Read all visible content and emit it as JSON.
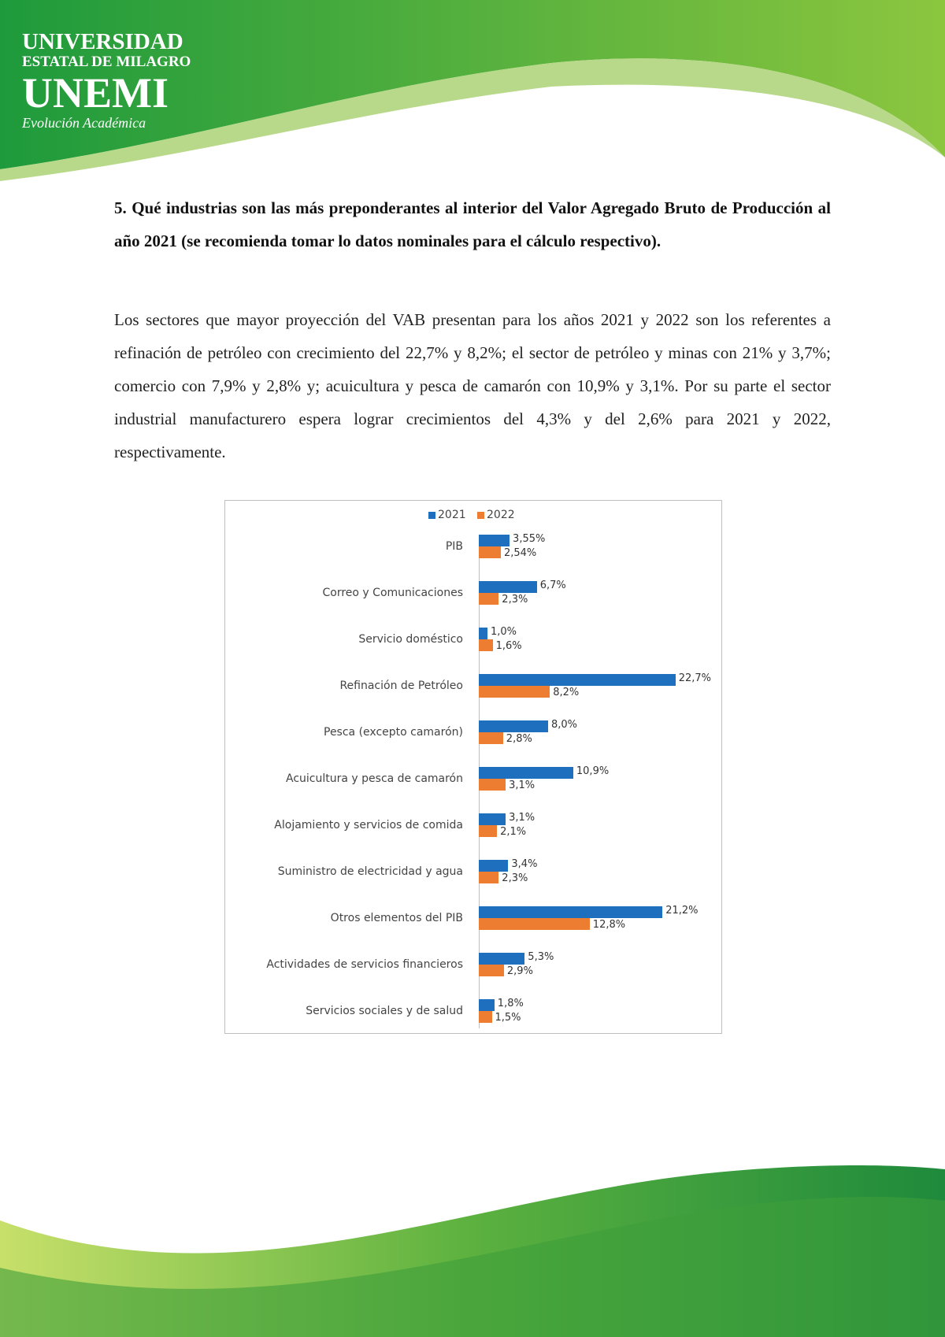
{
  "header": {
    "logo_line1": "UNIVERSIDAD",
    "logo_line2": "ESTATAL DE MILAGRO",
    "logo_line3": "UNEMI",
    "logo_tagline": "Evolución Académica"
  },
  "question": "5. Qué industrias son las más preponderantes al interior del Valor Agregado Bruto de Producción al año 2021 (se recomienda tomar lo datos nominales para el cálculo respectivo).",
  "paragraph": "Los sectores que mayor proyección del VAB presentan para los años 2021 y 2022 son los referentes a refinación de petróleo con crecimiento del 22,7% y 8,2%; el sector de petróleo y minas con 21% y 3,7%; comercio con 7,9% y 2,8% y; acuicultura y pesca de camarón con 10,9% y 3,1%. Por su parte el sector industrial manufacturero espera lograr crecimientos del 4,3% y del 2,6% para 2021 y 2022, respectivamente.",
  "chart_data": {
    "type": "bar",
    "orientation": "horizontal",
    "categories": [
      "PIB",
      "Correo y Comunicaciones",
      "Servicio doméstico",
      "Refinación de Petróleo",
      "Pesca (excepto camarón)",
      "Acuicultura y pesca de camarón",
      "Alojamiento y servicios de comida",
      "Suministro de electricidad y agua",
      "Otros elementos del PIB",
      "Actividades de servicios financieros",
      "Servicios sociales y de salud"
    ],
    "series": [
      {
        "name": "2021",
        "color": "#1f6fbf",
        "values": [
          3.55,
          6.7,
          1.0,
          22.7,
          8.0,
          10.9,
          3.1,
          3.4,
          21.2,
          5.3,
          1.8
        ],
        "value_labels": [
          "3,55%",
          "6,7%",
          "1,0%",
          "22,7%",
          "8,0%",
          "10,9%",
          "3,1%",
          "3,4%",
          "21,2%",
          "5,3%",
          "1,8%"
        ]
      },
      {
        "name": "2022",
        "color": "#ed7d31",
        "values": [
          2.54,
          2.3,
          1.6,
          8.2,
          2.8,
          3.1,
          2.1,
          2.3,
          12.8,
          2.9,
          1.5
        ],
        "value_labels": [
          "2,54%",
          "2,3%",
          "1,6%",
          "8,2%",
          "2,8%",
          "3,1%",
          "2,1%",
          "2,3%",
          "12,8%",
          "2,9%",
          "1,5%"
        ]
      }
    ],
    "legend": "top"
  }
}
